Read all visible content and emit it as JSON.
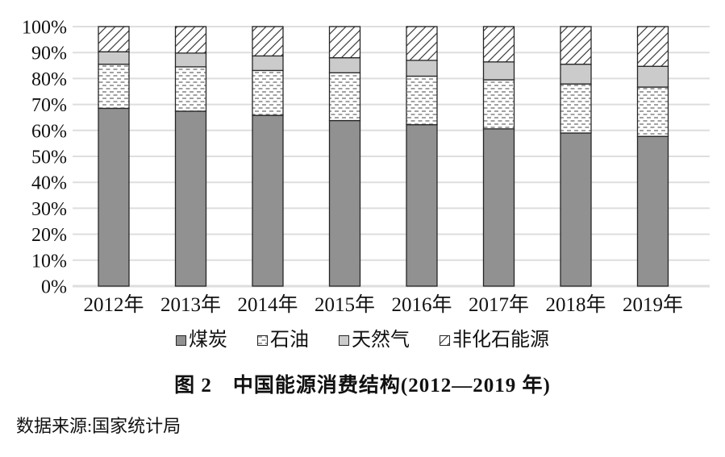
{
  "chart_data": {
    "type": "bar",
    "stacked": true,
    "title": "图 2　中国能源消费结构(2012—2019 年)",
    "source": "数据来源:国家统计局",
    "categories": [
      "2012年",
      "2013年",
      "2014年",
      "2015年",
      "2016年",
      "2017年",
      "2018年",
      "2019年"
    ],
    "series": [
      {
        "name": "煤炭",
        "pattern": "solid-dark",
        "values": [
          68.5,
          67.4,
          65.8,
          63.8,
          62.2,
          60.6,
          59.0,
          57.7
        ]
      },
      {
        "name": "石油",
        "pattern": "dotted",
        "values": [
          17.0,
          17.1,
          17.3,
          18.4,
          18.7,
          18.9,
          18.9,
          19.0
        ]
      },
      {
        "name": "天然气",
        "pattern": "solid-light",
        "values": [
          4.8,
          5.3,
          5.6,
          5.8,
          6.1,
          6.9,
          7.6,
          8.0
        ]
      },
      {
        "name": "非化石能源",
        "pattern": "hatched",
        "values": [
          9.7,
          10.2,
          11.3,
          12.0,
          13.0,
          13.6,
          14.5,
          15.3
        ]
      }
    ],
    "ylim": [
      0,
      100
    ],
    "yticks": [
      "0%",
      "10%",
      "20%",
      "30%",
      "40%",
      "50%",
      "60%",
      "70%",
      "80%",
      "90%",
      "100%"
    ],
    "xlabel": "",
    "ylabel": "",
    "grid": true,
    "legend_position": "bottom"
  },
  "colors": {
    "coal_fill": "#919191",
    "gas_fill": "#cbcbcb",
    "oil_dash": "#8c8c8c",
    "hatch_line": "#3d3d3d",
    "bar_border": "#262626",
    "gridline": "#dedede",
    "text": "#111111"
  }
}
